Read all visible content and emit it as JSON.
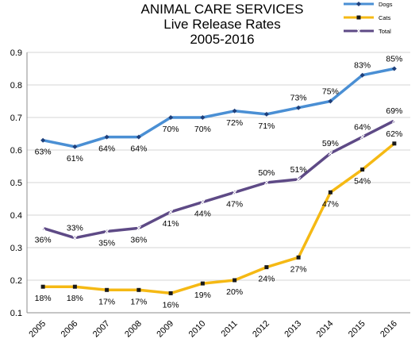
{
  "chart_data": {
    "type": "line",
    "title_lines": [
      "ANIMAL CARE SERVICES",
      "Live Release Rates",
      "2005-2016"
    ],
    "x": [
      "2005",
      "2006",
      "2007",
      "2008",
      "2009",
      "2010",
      "2011",
      "2012",
      "2013",
      "2014",
      "2015",
      "2016"
    ],
    "ylim": [
      0.1,
      0.9
    ],
    "yticks": [
      "0.1",
      "0.2",
      "0.3",
      "0.4",
      "0.5",
      "0.6",
      "0.7",
      "0.8",
      "0.9"
    ],
    "grid": true,
    "legend_position": "top-right",
    "series": [
      {
        "name": "Dogs",
        "color": "#4a8fd4",
        "marker": "diamond",
        "values": [
          0.63,
          0.61,
          0.64,
          0.64,
          0.7,
          0.7,
          0.72,
          0.71,
          0.73,
          0.75,
          0.83,
          0.85
        ],
        "labels": [
          "63%",
          "61%",
          "64%",
          "64%",
          "70%",
          "70%",
          "72%",
          "71%",
          "73%",
          "75%",
          "83%",
          "85%"
        ],
        "label_pos": [
          "below",
          "below",
          "below",
          "below",
          "below",
          "below",
          "below",
          "below",
          "above",
          "above",
          "above",
          "above"
        ]
      },
      {
        "name": "Cats",
        "color": "#f5b914",
        "marker": "square",
        "values": [
          0.18,
          0.18,
          0.17,
          0.17,
          0.16,
          0.19,
          0.2,
          0.24,
          0.27,
          0.47,
          0.54,
          0.62
        ],
        "labels": [
          "18%",
          "18%",
          "17%",
          "17%",
          "16%",
          "19%",
          "20%",
          "24%",
          "27%",
          "47%",
          "54%",
          "62%"
        ],
        "label_pos": [
          "below",
          "below",
          "below",
          "below",
          "below",
          "below",
          "below",
          "below",
          "below",
          "below",
          "below",
          "above"
        ]
      },
      {
        "name": "Total",
        "color": "#5e4a86",
        "marker": "x",
        "values": [
          0.36,
          0.33,
          0.35,
          0.36,
          0.41,
          0.44,
          0.47,
          0.5,
          0.51,
          0.59,
          0.64,
          0.69
        ],
        "labels": [
          "36%",
          "33%",
          "35%",
          "36%",
          "41%",
          "44%",
          "47%",
          "50%",
          "51%",
          "59%",
          "64%",
          "69%"
        ],
        "label_pos": [
          "below",
          "above",
          "below",
          "below",
          "below",
          "below",
          "below",
          "above",
          "above",
          "above",
          "above",
          "above"
        ]
      }
    ]
  }
}
